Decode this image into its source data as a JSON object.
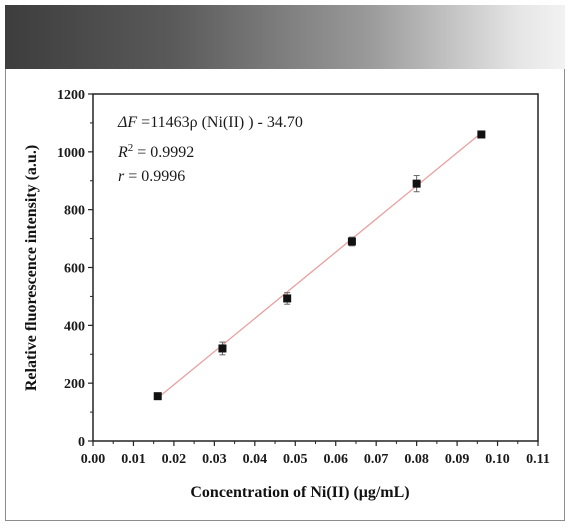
{
  "chart_data": {
    "type": "scatter",
    "xlabel": "Concentration of Ni(II) (μg/mL)",
    "ylabel": "Relative fluorescence intensity (a.u.)",
    "xlim": [
      0.0,
      0.11
    ],
    "ylim": [
      0,
      1200
    ],
    "xticks": [
      "0.00",
      "0.01",
      "0.02",
      "0.03",
      "0.04",
      "0.05",
      "0.06",
      "0.07",
      "0.08",
      "0.09",
      "0.10",
      "0.11"
    ],
    "yticks": [
      "0",
      "200",
      "400",
      "600",
      "800",
      "1000",
      "1200"
    ],
    "grid": false,
    "series": [
      {
        "x": [
          0.016,
          0.032,
          0.048,
          0.064,
          0.08,
          0.096
        ],
        "y": [
          155,
          320,
          493,
          690,
          890,
          1060
        ],
        "err": [
          8,
          22,
          20,
          15,
          28,
          10
        ],
        "color": "#111111"
      }
    ],
    "fit_line": {
      "slope": 11463,
      "intercept": -34.7,
      "x_range": [
        0.016,
        0.096
      ],
      "color": "#e8a0a0"
    },
    "annotations": [
      {
        "prefix": "ΔF",
        "text": " =11463ρ (Ni(II) ) - 34.70"
      },
      {
        "prefix": "R",
        "sup": "2",
        "text": " = 0.9992"
      },
      {
        "prefix": "r",
        "text": " = 0.9996"
      }
    ]
  }
}
